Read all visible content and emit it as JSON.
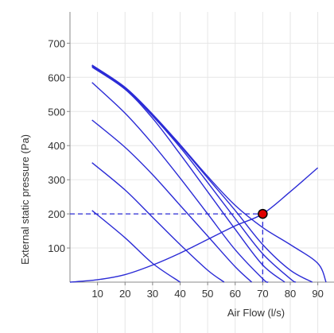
{
  "chart_data": {
    "type": "line",
    "title": "",
    "xlabel": "Air Flow (l/s)",
    "ylabel": "External static pressure (Pa)",
    "xlim": [
      0,
      93
    ],
    "ylim": [
      0,
      780
    ],
    "x_ticks": [
      10,
      20,
      30,
      40,
      50,
      60,
      70,
      80,
      90
    ],
    "y_ticks": [
      100,
      200,
      300,
      400,
      500,
      600,
      700
    ],
    "grid": true,
    "colors": {
      "curve": "#2b2bd6",
      "grid": "#e6e6e6",
      "axis": "#888888",
      "point_fill": "#e00000",
      "point_stroke": "#000000"
    },
    "series": [
      {
        "x": [
          8,
          20,
          30,
          40
        ],
        "y": [
          210,
          130,
          55,
          0
        ]
      },
      {
        "x": [
          8,
          20,
          30,
          40,
          50,
          56
        ],
        "y": [
          350,
          270,
          190,
          110,
          35,
          0
        ]
      },
      {
        "x": [
          8,
          20,
          30,
          40,
          50,
          60,
          66
        ],
        "y": [
          475,
          395,
          315,
          225,
          135,
          45,
          0
        ]
      },
      {
        "x": [
          8,
          20,
          30,
          40,
          50,
          60,
          70,
          72
        ],
        "y": [
          585,
          495,
          405,
          305,
          200,
          95,
          10,
          0
        ]
      },
      {
        "x": [
          8,
          20,
          30,
          40,
          50,
          60,
          70,
          78
        ],
        "y": [
          630,
          565,
          480,
          375,
          265,
          155,
          50,
          0
        ]
      },
      {
        "x": [
          8,
          20,
          30,
          40,
          50,
          60,
          70,
          80,
          82
        ],
        "y": [
          633,
          568,
          487,
          395,
          292,
          186,
          83,
          10,
          0
        ]
      },
      {
        "x": [
          8,
          20,
          30,
          40,
          50,
          60,
          70,
          80,
          88
        ],
        "y": [
          635,
          570,
          490,
          400,
          305,
          210,
          110,
          35,
          0
        ]
      },
      {
        "x": [
          8,
          20,
          30,
          40,
          50,
          60,
          70,
          80,
          90,
          93
        ],
        "y": [
          636,
          571,
          492,
          403,
          310,
          225,
          160,
          110,
          55,
          0
        ]
      },
      {
        "x": [
          0,
          10,
          20,
          30,
          40,
          50,
          60,
          70,
          80,
          90
        ],
        "y": [
          0,
          7,
          22,
          50,
          85,
          125,
          165,
          200,
          265,
          335
        ]
      }
    ],
    "operating_point": {
      "x": 70,
      "y": 200
    }
  }
}
